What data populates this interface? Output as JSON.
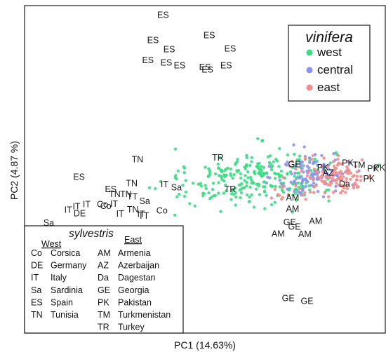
{
  "chart_data": {
    "type": "scatter",
    "xlabel": "PC1 (14.63%)",
    "ylabel": "PC2 (4.87 %)",
    "xlim": [
      0,
      100
    ],
    "ylim": [
      0,
      100
    ],
    "colors": {
      "west": "#3ddc84",
      "central": "#8a93ee",
      "east": "#f28c8c"
    },
    "legend_vinifera": {
      "title": "vinifera",
      "placement": "top-right",
      "entries": [
        {
          "key": "west",
          "label": "west"
        },
        {
          "key": "central",
          "label": "central"
        },
        {
          "key": "east",
          "label": "east"
        }
      ]
    },
    "legend_sylvestris": {
      "title": "sylvestris",
      "placement": "bottom-left",
      "west_header": "West",
      "east_header": "East",
      "west": [
        {
          "code": "Co",
          "name": "Corsica"
        },
        {
          "code": "DE",
          "name": "Germany"
        },
        {
          "code": "IT",
          "name": "Italy"
        },
        {
          "code": "Sa",
          "name": "Sardinia"
        },
        {
          "code": "ES",
          "name": "Spain"
        },
        {
          "code": "TN",
          "name": "Tunisia"
        }
      ],
      "east": [
        {
          "code": "AM",
          "name": "Armenia"
        },
        {
          "code": "AZ",
          "name": "Azerbaijan"
        },
        {
          "code": "Da",
          "name": "Dagestan"
        },
        {
          "code": "GE",
          "name": "Georgia"
        },
        {
          "code": "PK",
          "name": "Pakistan"
        },
        {
          "code": "TM",
          "name": "Turkmenistan"
        },
        {
          "code": "TR",
          "name": "Turkey"
        }
      ]
    },
    "vinifera_clusters": [
      {
        "group": "west",
        "n": 230,
        "cx": 66,
        "cy": 48,
        "sx": 10,
        "sy": 4.2
      },
      {
        "group": "west",
        "n": 40,
        "cx": 52,
        "cy": 44,
        "sx": 7,
        "sy": 3.5
      },
      {
        "group": "central",
        "n": 120,
        "cx": 80,
        "cy": 48.5,
        "sx": 5,
        "sy": 3.2
      },
      {
        "group": "east",
        "n": 110,
        "cx": 87,
        "cy": 48,
        "sx": 5,
        "sy": 2.8
      },
      {
        "group": "east",
        "n": 18,
        "cx": 74,
        "cy": 43,
        "sx": 3.5,
        "sy": 1.5
      }
    ],
    "sylvestris_points": [
      {
        "label": "ES",
        "x": 38.4,
        "y": 97.0
      },
      {
        "label": "ES",
        "x": 35.6,
        "y": 89.3
      },
      {
        "label": "ES",
        "x": 51.2,
        "y": 90.8
      },
      {
        "label": "ES",
        "x": 34.2,
        "y": 83.1
      },
      {
        "label": "ES",
        "x": 40.1,
        "y": 86.5
      },
      {
        "label": "ES",
        "x": 57.0,
        "y": 86.7
      },
      {
        "label": "ES",
        "x": 39.3,
        "y": 82.4
      },
      {
        "label": "ES",
        "x": 43.0,
        "y": 81.5
      },
      {
        "label": "ES",
        "x": 50.0,
        "y": 81.0
      },
      {
        "label": "ES",
        "x": 55.9,
        "y": 81.5
      },
      {
        "label": "ES",
        "x": 50.7,
        "y": 80.3
      },
      {
        "label": "ES",
        "x": 15.1,
        "y": 47.5
      },
      {
        "label": "ES",
        "x": 23.9,
        "y": 43.8
      },
      {
        "label": "TN",
        "x": 31.3,
        "y": 52.8
      },
      {
        "label": "TN",
        "x": 29.7,
        "y": 45.6
      },
      {
        "label": "TN",
        "x": 28.1,
        "y": 42.2
      },
      {
        "label": "TN",
        "x": 25.0,
        "y": 42.3
      },
      {
        "label": "TN",
        "x": 30.0,
        "y": 37.5
      },
      {
        "label": "IT",
        "x": 38.8,
        "y": 45.2
      },
      {
        "label": "IT",
        "x": 14.4,
        "y": 38.5
      },
      {
        "label": "IT",
        "x": 17.2,
        "y": 39.1
      },
      {
        "label": "IT",
        "x": 12.1,
        "y": 37.4
      },
      {
        "label": "IT",
        "x": 24.8,
        "y": 39.2
      },
      {
        "label": "IT",
        "x": 26.5,
        "y": 36.3
      },
      {
        "label": "IT",
        "x": 32.3,
        "y": 36.1
      },
      {
        "label": "TT",
        "x": 29.9,
        "y": 41.5
      },
      {
        "label": "TT",
        "x": 33.0,
        "y": 35.6
      },
      {
        "label": "Sa",
        "x": 42.1,
        "y": 44.3
      },
      {
        "label": "Sa",
        "x": 33.3,
        "y": 40.1
      },
      {
        "label": "Sa",
        "x": 6.7,
        "y": 33.5
      },
      {
        "label": "Sa",
        "x": 19.3,
        "y": 31.2
      },
      {
        "label": "DE",
        "x": 15.3,
        "y": 36.4
      },
      {
        "label": "Co",
        "x": 21.6,
        "y": 39.1
      },
      {
        "label": "Co",
        "x": 38.1,
        "y": 37.2
      },
      {
        "label": "Co",
        "x": 22.5,
        "y": 38.6
      },
      {
        "label": "TR",
        "x": 53.6,
        "y": 53.4
      },
      {
        "label": "TR",
        "x": 57.0,
        "y": 43.7
      },
      {
        "label": "GE",
        "x": 74.8,
        "y": 51.3
      },
      {
        "label": "GE",
        "x": 73.5,
        "y": 33.7
      },
      {
        "label": "GE",
        "x": 74.8,
        "y": 32.3
      },
      {
        "label": "GE",
        "x": 73.1,
        "y": 10.4
      },
      {
        "label": "GE",
        "x": 78.3,
        "y": 9.6
      },
      {
        "label": "PK",
        "x": 82.7,
        "y": 50.4
      },
      {
        "label": "PK",
        "x": 89.6,
        "y": 51.8
      },
      {
        "label": "PK",
        "x": 96.6,
        "y": 50.1
      },
      {
        "label": "PK",
        "x": 98.4,
        "y": 50.3
      },
      {
        "label": "PK",
        "x": 95.5,
        "y": 47.0
      },
      {
        "label": "AZ",
        "x": 84.2,
        "y": 48.8
      },
      {
        "label": "TM",
        "x": 92.7,
        "y": 51.1
      },
      {
        "label": "Da",
        "x": 88.7,
        "y": 45.3
      },
      {
        "label": "AM",
        "x": 74.3,
        "y": 41.2
      },
      {
        "label": "AM",
        "x": 74.3,
        "y": 37.8
      },
      {
        "label": "AM",
        "x": 80.7,
        "y": 34.0
      },
      {
        "label": "AM",
        "x": 70.3,
        "y": 30.1
      },
      {
        "label": "AM",
        "x": 77.7,
        "y": 30.0
      }
    ]
  }
}
